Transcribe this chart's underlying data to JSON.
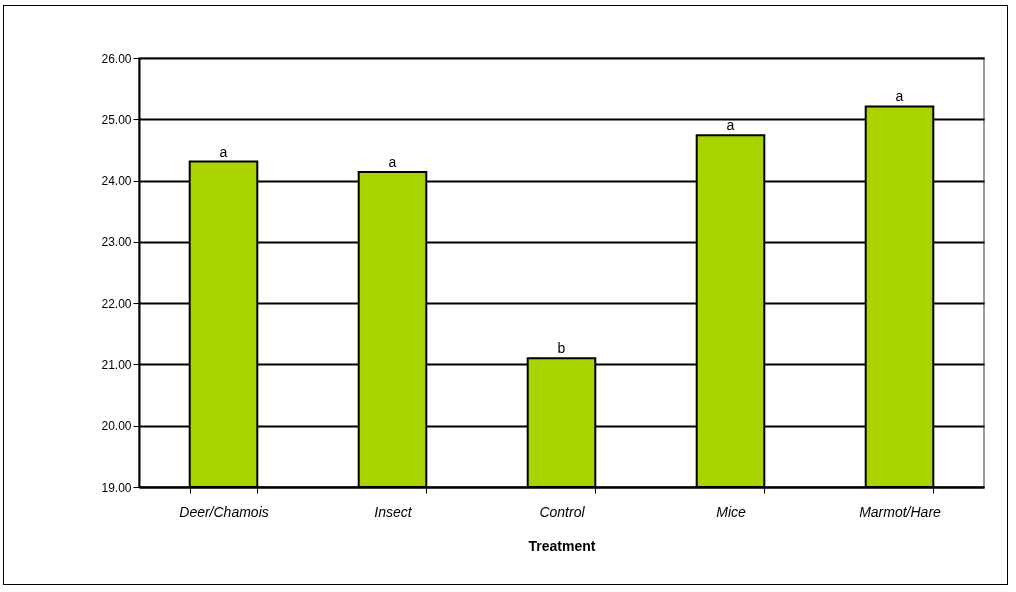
{
  "chart_data": {
    "type": "bar",
    "xlabel": "Treatment",
    "categories": [
      "Deer/Chamois",
      "Insect",
      "Control",
      "Mice",
      "Marmot/Hare"
    ],
    "values": [
      24.31,
      24.14,
      21.1,
      24.74,
      25.21
    ],
    "color": "#aad400",
    "ylim": [
      19,
      26
    ],
    "yticks": [
      {
        "value": 19,
        "label": "19.00"
      },
      {
        "value": 20,
        "label": "20.00"
      },
      {
        "value": 21,
        "label": "21.00"
      },
      {
        "value": 22,
        "label": "22.00"
      },
      {
        "value": 23,
        "label": "23.00"
      },
      {
        "value": 24,
        "label": "24.00"
      },
      {
        "value": 25,
        "label": "25.00"
      },
      {
        "value": 26,
        "label": "26.00"
      }
    ],
    "grid": "y",
    "annotations": [
      {
        "text": "a",
        "x": "Deer/Chamois",
        "y": 24.31
      },
      {
        "text": "a",
        "x": "Insect",
        "y": 24.14
      },
      {
        "text": "b",
        "x": "Control",
        "y": 21.1
      },
      {
        "text": "a",
        "x": "Mice",
        "y": 24.74
      },
      {
        "text": "a",
        "x": "Marmot/Hare",
        "y": 25.21
      }
    ]
  }
}
